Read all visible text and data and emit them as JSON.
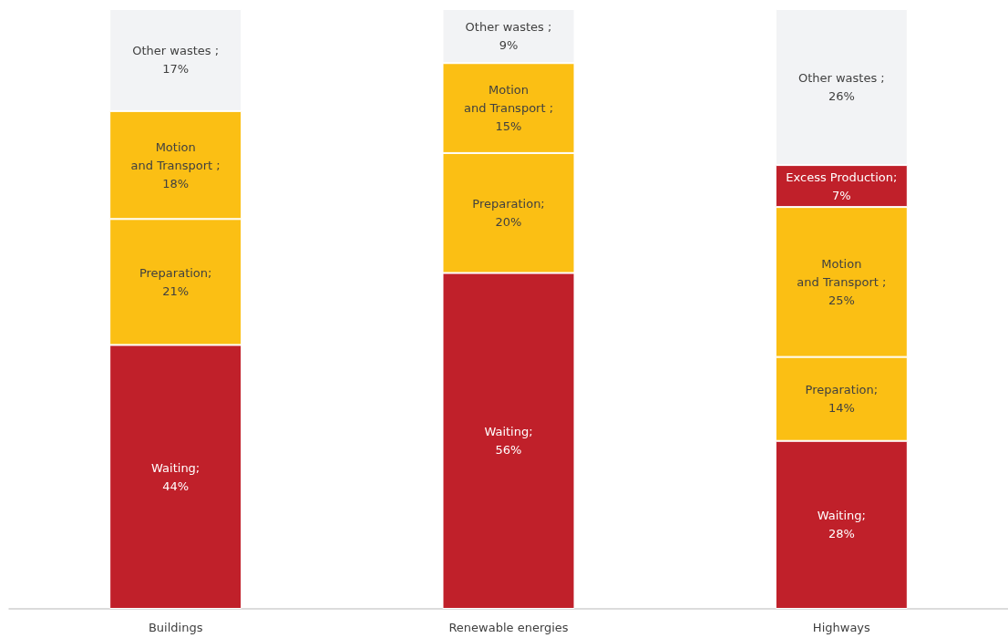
{
  "chart_data": {
    "type": "bar",
    "stacked": true,
    "categories": [
      "Buildings",
      "Renewable energies",
      "Highways"
    ],
    "series": [
      {
        "color": "#c0202a",
        "values": [
          44,
          56,
          28
        ],
        "value_labels": [
          "Waiting;\n44%",
          "Waiting;\n56%",
          "Waiting;\n28%"
        ]
      },
      {
        "color": "#fbbf14",
        "values": [
          21,
          20,
          14
        ],
        "value_labels": [
          "Preparation;\n21%",
          "Preparation;\n20%",
          "Preparation;\n14%"
        ]
      },
      {
        "color": "#fbbf14",
        "values": [
          18,
          15,
          25
        ],
        "value_labels": [
          "Motion\nand Transport ;\n18%",
          "Motion\nand Transport ;\n15%",
          "Motion\nand Transport ;\n25%"
        ]
      },
      {
        "color": "#c0202a",
        "values": [
          null,
          null,
          7
        ],
        "value_labels": [
          null,
          null,
          "Excess Production;\n7%"
        ]
      },
      {
        "color": "#f2f3f5",
        "values": [
          17,
          9,
          26
        ],
        "value_labels": [
          "Other wastes ;\n17%",
          "Other wastes ;\n9%",
          "Other wastes ;\n26%"
        ]
      }
    ],
    "tick_labels": "x"
  }
}
